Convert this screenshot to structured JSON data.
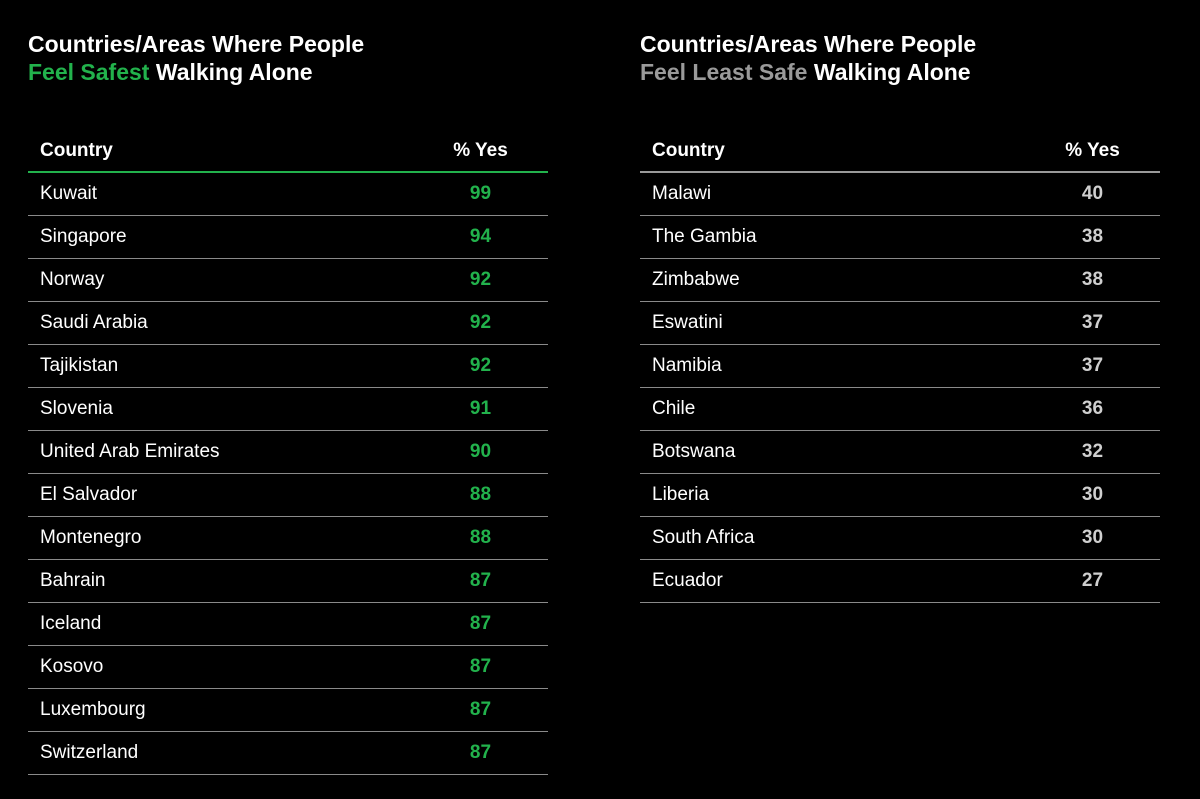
{
  "colors": {
    "background": "#000000",
    "safe_accent": "#22b24c",
    "least_safe_accent": "#9a9a9a"
  },
  "chart_data": [
    {
      "type": "table",
      "title_line1": "Countries/Areas Where People",
      "title_highlight": "Feel Safest",
      "title_rest": " Walking Alone",
      "columns": [
        "Country",
        "% Yes"
      ],
      "rows": [
        {
          "country": "Kuwait",
          "value": "99"
        },
        {
          "country": "Singapore",
          "value": "94"
        },
        {
          "country": "Norway",
          "value": "92"
        },
        {
          "country": "Saudi Arabia",
          "value": "92"
        },
        {
          "country": "Tajikistan",
          "value": "92"
        },
        {
          "country": "Slovenia",
          "value": "91"
        },
        {
          "country": "United Arab Emirates",
          "value": "90"
        },
        {
          "country": "El Salvador",
          "value": "88"
        },
        {
          "country": "Montenegro",
          "value": "88"
        },
        {
          "country": "Bahrain",
          "value": "87"
        },
        {
          "country": "Iceland",
          "value": "87"
        },
        {
          "country": "Kosovo",
          "value": "87"
        },
        {
          "country": "Luxembourg",
          "value": "87"
        },
        {
          "country": "Switzerland",
          "value": "87"
        }
      ]
    },
    {
      "type": "table",
      "title_line1": "Countries/Areas Where People",
      "title_highlight": "Feel Least Safe",
      "title_rest": " Walking Alone",
      "columns": [
        "Country",
        "% Yes"
      ],
      "rows": [
        {
          "country": "Malawi",
          "value": "40"
        },
        {
          "country": "The Gambia",
          "value": "38"
        },
        {
          "country": "Zimbabwe",
          "value": "38"
        },
        {
          "country": "Eswatini",
          "value": "37"
        },
        {
          "country": "Namibia",
          "value": "37"
        },
        {
          "country": "Chile",
          "value": "36"
        },
        {
          "country": "Botswana",
          "value": "32"
        },
        {
          "country": "Liberia",
          "value": "30"
        },
        {
          "country": "South Africa",
          "value": "30"
        },
        {
          "country": "Ecuador",
          "value": "27"
        }
      ]
    }
  ]
}
